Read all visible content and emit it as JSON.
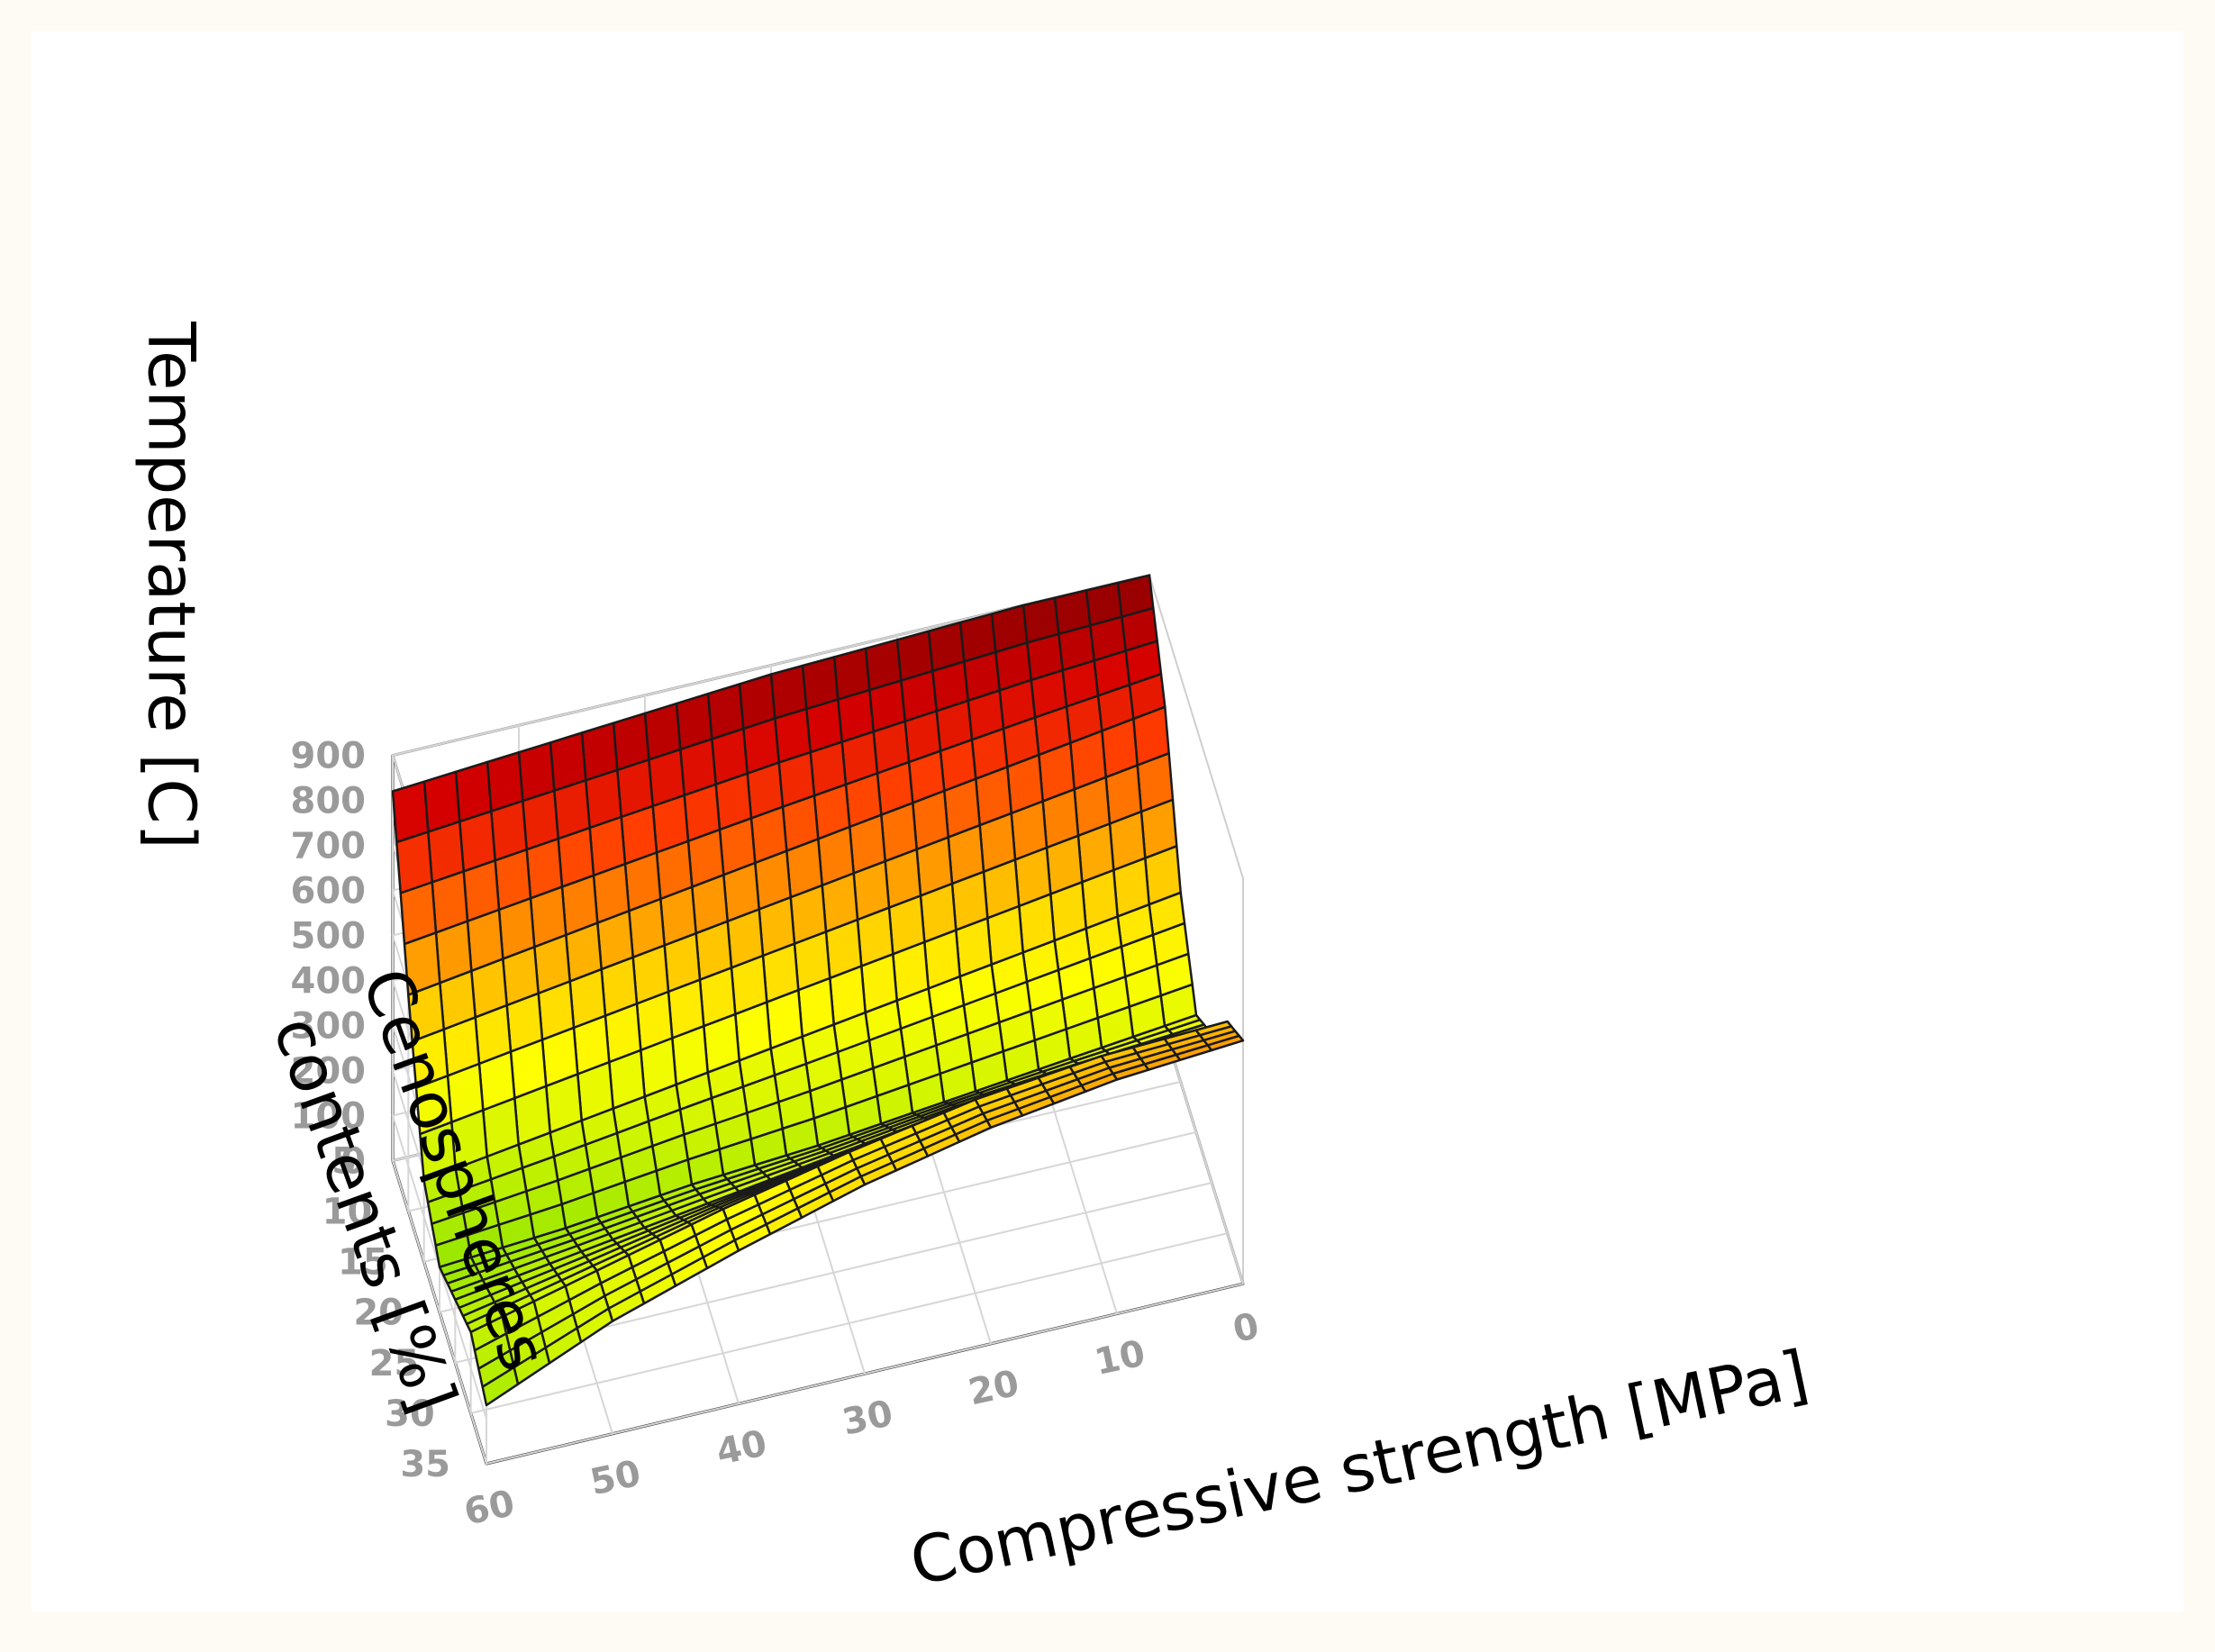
{
  "chart_data": {
    "type": "surface3d",
    "title": "",
    "zlabel": "Temperature [C]",
    "ylabel": "Cenospheres contents [%]",
    "ylabel_lines": [
      "Cenospheres",
      "contents [%]"
    ],
    "xlabel": "Compressive strength [MPa]",
    "x_ticks": [
      "60",
      "50",
      "40",
      "30",
      "20",
      "10",
      "0"
    ],
    "y_ticks": [
      "5",
      "10",
      "15",
      "20",
      "25",
      "30",
      "35"
    ],
    "z_ticks": [
      "0",
      "100",
      "200",
      "300",
      "400",
      "500",
      "600",
      "700",
      "800",
      "900"
    ],
    "xlim": [
      0,
      60
    ],
    "ylim": [
      5,
      35
    ],
    "zlim": [
      0,
      900
    ],
    "grid": true,
    "colormap": [
      "#8c0000",
      "#d40000",
      "#ff3c00",
      "#ff8c00",
      "#ffd200",
      "#ffff00",
      "#d2f500",
      "#96e600"
    ],
    "x_values": [
      0,
      10,
      20,
      30,
      40,
      50,
      60
    ],
    "y_values": [
      5,
      10,
      15,
      20,
      25,
      30,
      35
    ],
    "z_estimates": [
      [
        900,
        900,
        890,
        880,
        860,
        840,
        820
      ],
      [
        720,
        680,
        640,
        600,
        560,
        520,
        480
      ],
      [
        420,
        380,
        340,
        300,
        260,
        220,
        180
      ],
      [
        260,
        230,
        200,
        170,
        150,
        120,
        100
      ],
      [
        330,
        320,
        300,
        260,
        220,
        180,
        140
      ],
      [
        470,
        460,
        430,
        380,
        320,
        250,
        180
      ],
      [
        540,
        520,
        480,
        420,
        340,
        250,
        130
      ]
    ]
  }
}
